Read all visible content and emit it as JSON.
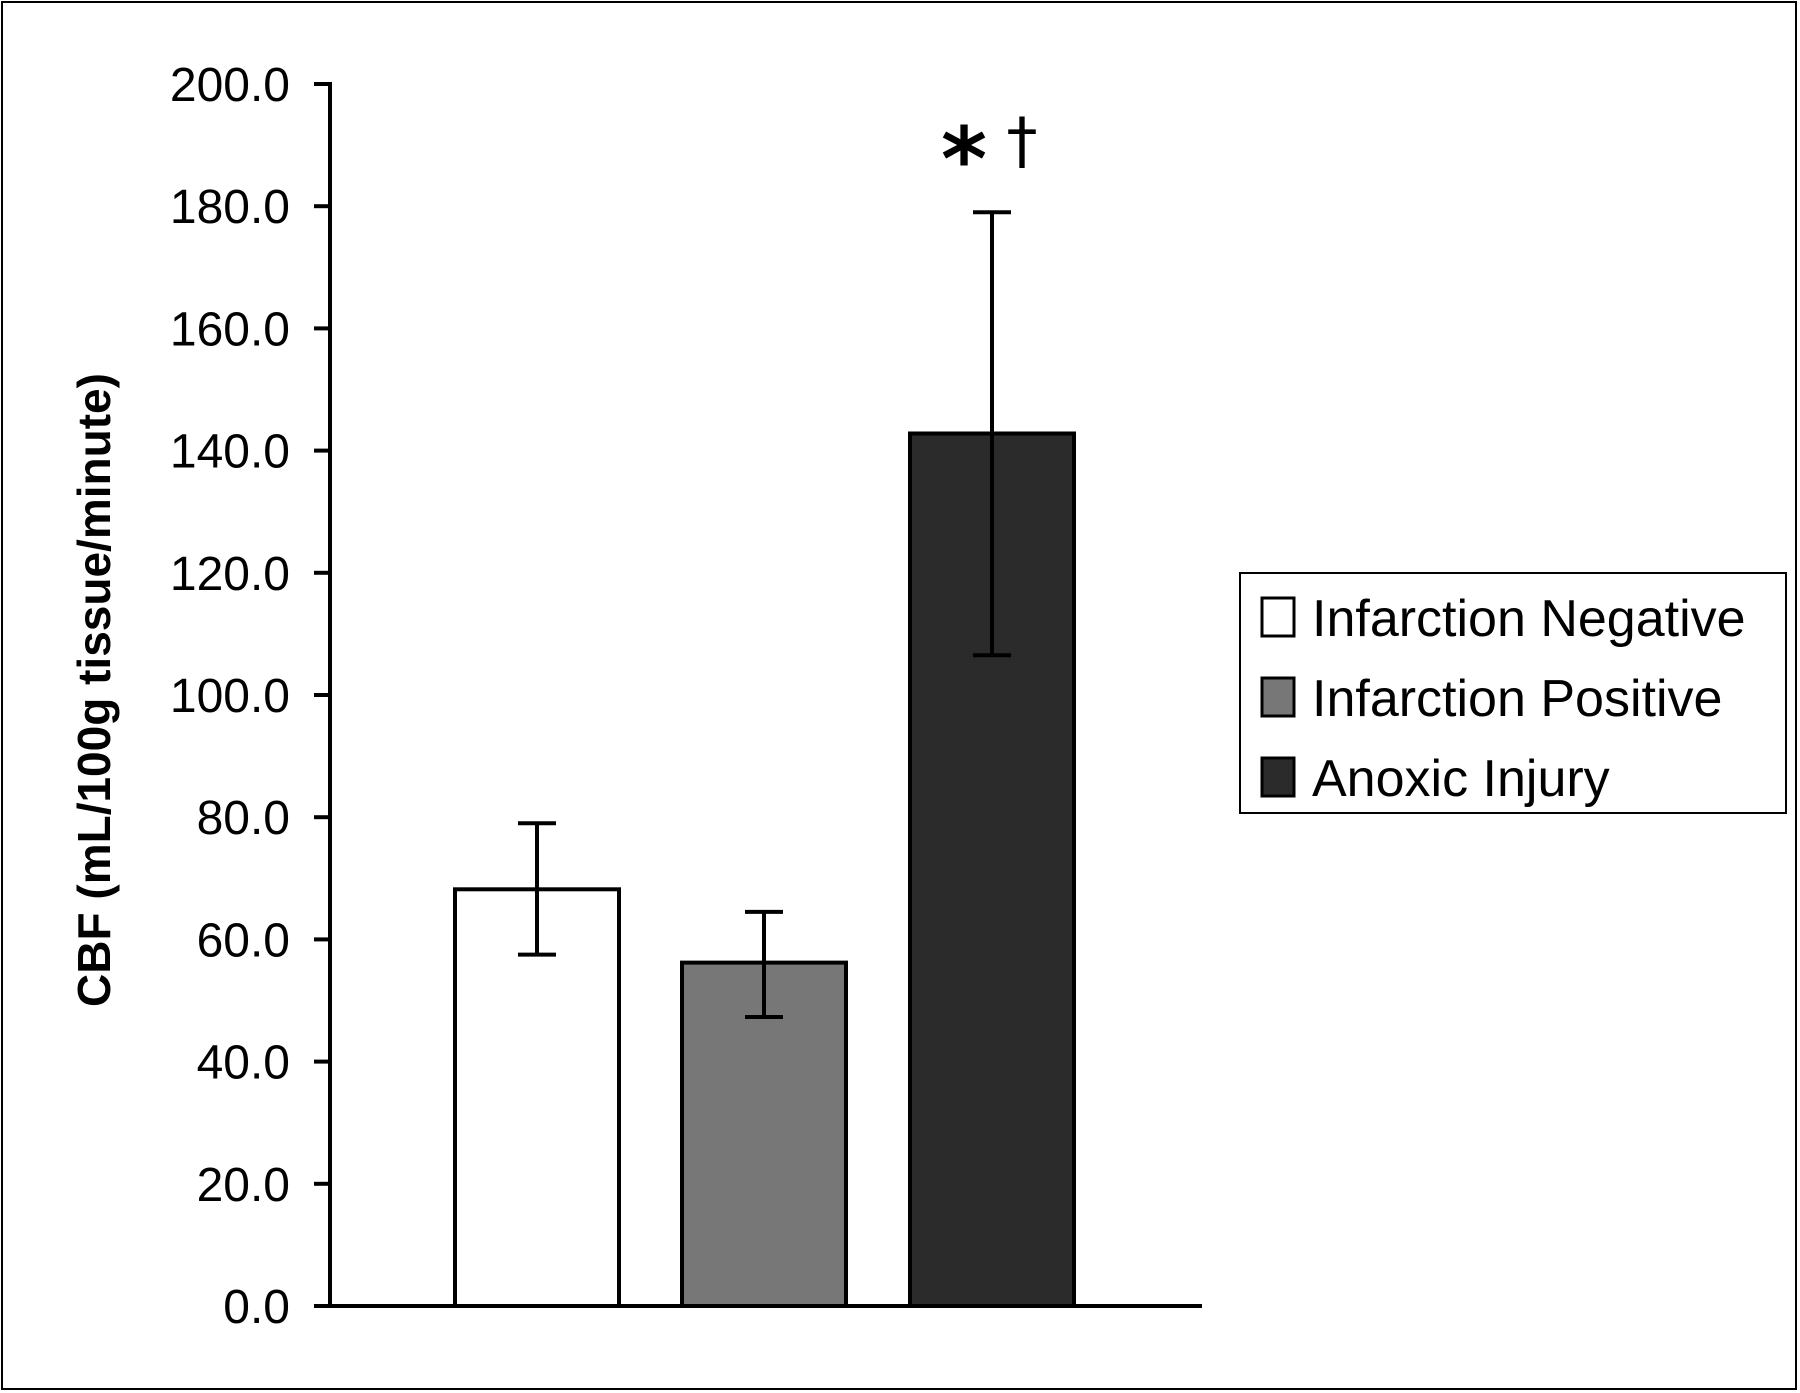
{
  "chart_data": {
    "type": "bar",
    "ylabel": "CBF (mL/100g tissue/minute)",
    "xlabel": "",
    "ylim": [
      0,
      200
    ],
    "yticks": [
      "0.0",
      "20.0",
      "40.0",
      "60.0",
      "80.0",
      "100.0",
      "120.0",
      "140.0",
      "160.0",
      "180.0",
      "200.0"
    ],
    "tick_values": [
      0,
      20,
      40,
      60,
      80,
      100,
      120,
      140,
      160,
      180,
      200
    ],
    "legend_position": "right",
    "grid": false,
    "series": [
      {
        "name": "Infarction Negative",
        "value": 68.2,
        "error_low": 57.5,
        "error_high": 79.0,
        "color": "#ffffff"
      },
      {
        "name": "Infarction Positive",
        "value": 56.2,
        "error_low": 47.3,
        "error_high": 64.5,
        "color": "#777777"
      },
      {
        "name": "Anoxic Injury",
        "value": 142.8,
        "error_low": 106.5,
        "error_high": 179.0,
        "color": "#2b2b2b"
      }
    ],
    "annotations": [
      {
        "text": "*",
        "series": "Anoxic Injury"
      },
      {
        "text": "†",
        "series": "Anoxic Injury"
      }
    ]
  }
}
